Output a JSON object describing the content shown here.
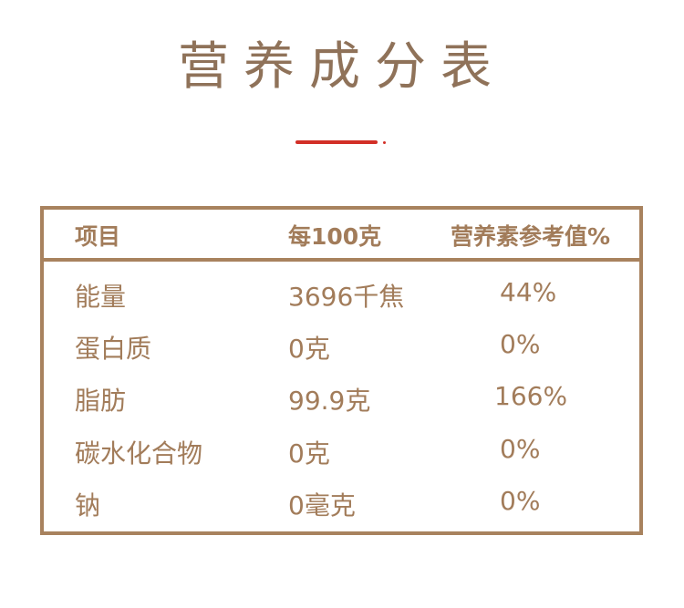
{
  "title": "营养成分表",
  "accent_color": "#d22f27",
  "border_color": "#a8825e",
  "table": {
    "headers": [
      "项目",
      "每100克",
      "营养素参考值%"
    ],
    "rows": [
      [
        "能量",
        "3696千焦",
        "44%"
      ],
      [
        "蛋白质",
        "0克",
        "0%"
      ],
      [
        "脂肪",
        "99.9克",
        "166%"
      ],
      [
        "碳水化合物",
        "0克",
        "0%"
      ],
      [
        "钠",
        "0毫克",
        "0%"
      ]
    ]
  }
}
